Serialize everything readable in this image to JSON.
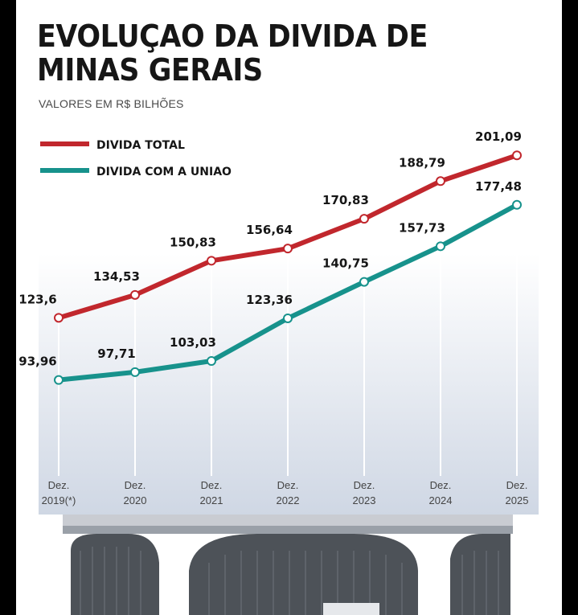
{
  "title_line1": "EVOLUÇAO DA DIVIDA DE",
  "title_line2": "MINAS GERAIS",
  "subtitle": "VALORES EM R$ BILHÕES",
  "colors": {
    "total": "#c1272d",
    "uniao": "#17928c",
    "bg_gradient": "#cdd5e2"
  },
  "chart_data": {
    "type": "line",
    "title": "EVOLUÇAO DA DIVIDA DE MINAS GERAIS",
    "ylabel": "VALORES EM R$ BILHÕES",
    "ylim": [
      90,
      205
    ],
    "grid": false,
    "legend_position": "top-left",
    "categories": [
      [
        "Dez.",
        "2019(*)"
      ],
      [
        "Dez.",
        "2020"
      ],
      [
        "Dez.",
        "2021"
      ],
      [
        "Dez.",
        "2022"
      ],
      [
        "Dez.",
        "2023"
      ],
      [
        "Dez.",
        "2024"
      ],
      [
        "Dez.",
        "2025"
      ]
    ],
    "series": [
      {
        "name": "DIVIDA TOTAL",
        "values": [
          123.6,
          134.53,
          150.83,
          156.64,
          170.83,
          188.79,
          201.09
        ],
        "labels": [
          "123,6",
          "134,53",
          "150,83",
          "156,64",
          "170,83",
          "188,79",
          "201,09"
        ]
      },
      {
        "name": "DIVIDA COM A UNIAO",
        "values": [
          93.96,
          97.71,
          103.03,
          123.36,
          140.75,
          157.73,
          177.48
        ],
        "labels": [
          "93,96",
          "97,71",
          "103,03",
          "123,36",
          "140,75",
          "157,73",
          "177,48"
        ]
      }
    ]
  }
}
